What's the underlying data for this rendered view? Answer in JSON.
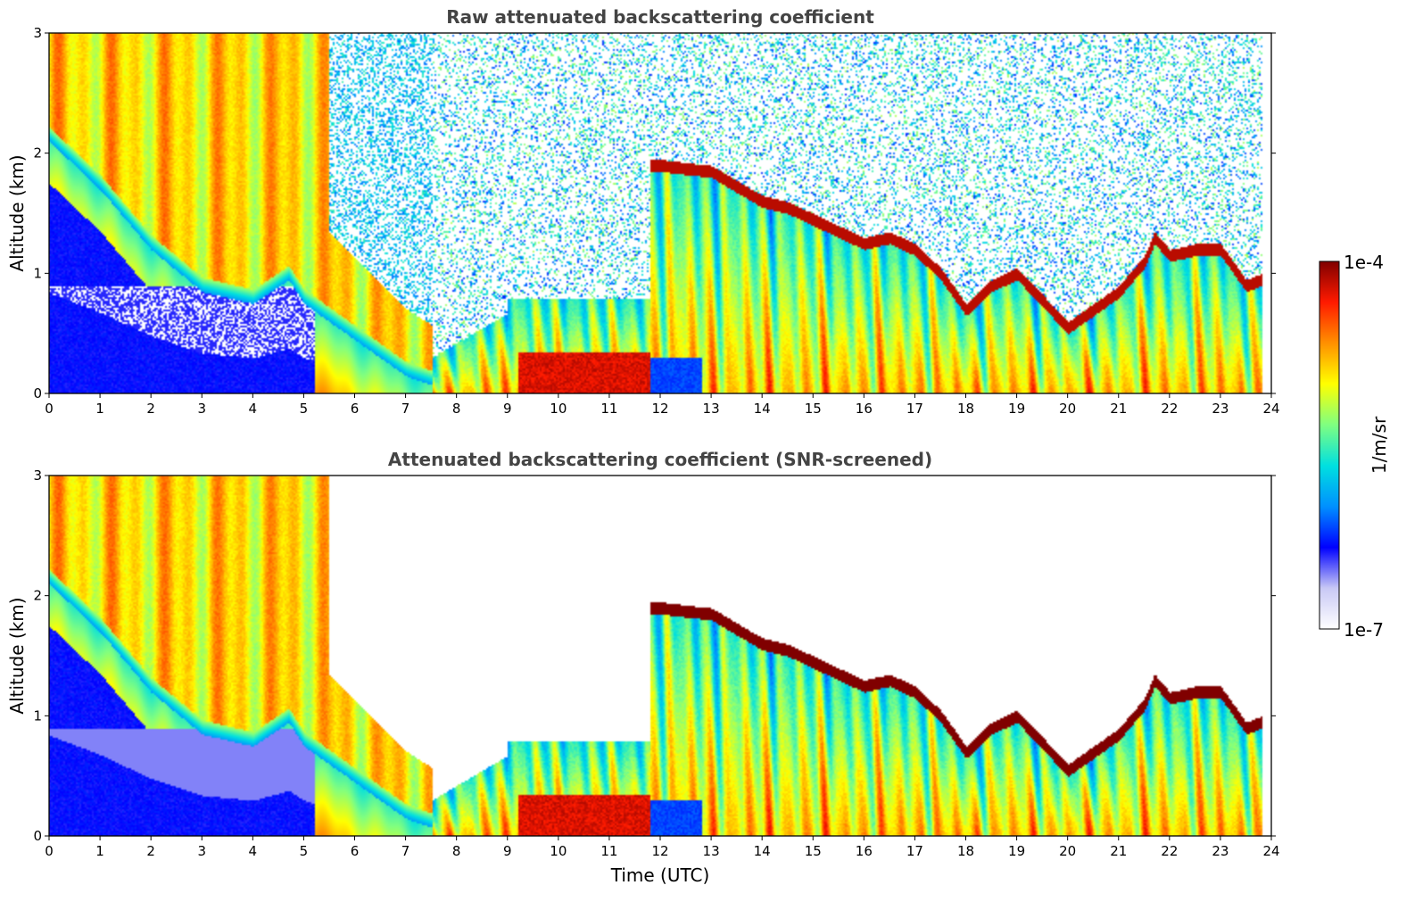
{
  "colors": {
    "colormap": [
      "#ffffff",
      "#c8c8f5",
      "#0000ff",
      "#0090ff",
      "#00e0e0",
      "#80ff80",
      "#ffff00",
      "#ff9000",
      "#ff1a00",
      "#800000"
    ],
    "frame": "#000000",
    "title_text": "#444444"
  },
  "colorbar": {
    "max_label": "1e-4",
    "min_label": "1e-7",
    "unit_label": "1/m/sr",
    "vmin": 1e-07,
    "vmax": 0.0001,
    "scale": "log"
  },
  "chart_data": [
    {
      "type": "heatmap",
      "title": "Raw attenuated backscattering coefficient",
      "xlabel": "",
      "ylabel": "Altitude (km)",
      "xlim": [
        0,
        24
      ],
      "ylim": [
        0,
        3
      ],
      "x_ticks": [
        "0",
        "1",
        "2",
        "3",
        "4",
        "5",
        "6",
        "7",
        "8",
        "9",
        "10",
        "11",
        "12",
        "13",
        "14",
        "15",
        "16",
        "17",
        "18",
        "19",
        "20",
        "21",
        "22",
        "23",
        "24"
      ],
      "y_ticks": [
        "0",
        "1",
        "2",
        "3"
      ],
      "colorscale": "jet, log",
      "cloud_top_km": {
        "time_utc": [
          12.0,
          13.0,
          14.0,
          14.5,
          15.0,
          15.5,
          16.0,
          16.5,
          17.0,
          17.5,
          18.0,
          18.5,
          19.0,
          20.0,
          21.0,
          21.5,
          21.7,
          22.0,
          22.5,
          23.0,
          23.5,
          23.8
        ],
        "altitude_km": [
          1.9,
          1.85,
          1.6,
          1.55,
          1.45,
          1.35,
          1.25,
          1.3,
          1.2,
          1.0,
          0.7,
          0.9,
          1.0,
          0.55,
          0.85,
          1.1,
          1.3,
          1.15,
          1.2,
          1.2,
          0.9,
          0.95
        ]
      },
      "mixing_layer_top_km": {
        "time_utc": [
          0.0,
          1.0,
          2.0,
          3.0,
          4.0,
          4.7,
          5.0,
          6.0,
          7.0,
          8.0,
          9.0
        ],
        "altitude_km": [
          2.1,
          1.7,
          1.2,
          0.85,
          0.75,
          0.95,
          0.75,
          0.45,
          0.15,
          0.0,
          0.0
        ]
      }
    },
    {
      "type": "heatmap",
      "title": "Attenuated backscattering coefficient (SNR-screened)",
      "xlabel": "Time (UTC)",
      "ylabel": "Altitude (km)",
      "xlim": [
        0,
        24
      ],
      "ylim": [
        0,
        3
      ],
      "x_ticks": [
        "0",
        "1",
        "2",
        "3",
        "4",
        "5",
        "6",
        "7",
        "8",
        "9",
        "10",
        "11",
        "12",
        "13",
        "14",
        "15",
        "16",
        "17",
        "18",
        "19",
        "20",
        "21",
        "22",
        "23",
        "24"
      ],
      "y_ticks": [
        "0",
        "1",
        "2",
        "3"
      ],
      "colorscale": "jet, log",
      "cloud_top_km": {
        "time_utc": [
          12.0,
          13.0,
          14.0,
          14.5,
          15.0,
          15.5,
          16.0,
          16.5,
          17.0,
          17.5,
          18.0,
          18.5,
          19.0,
          20.0,
          21.0,
          21.5,
          21.7,
          22.0,
          22.5,
          23.0,
          23.5,
          23.8
        ],
        "altitude_km": [
          1.9,
          1.85,
          1.6,
          1.55,
          1.45,
          1.35,
          1.25,
          1.3,
          1.2,
          1.0,
          0.7,
          0.9,
          1.0,
          0.55,
          0.85,
          1.1,
          1.3,
          1.15,
          1.2,
          1.2,
          0.9,
          0.95
        ]
      },
      "mixing_layer_top_km": {
        "time_utc": [
          0.0,
          1.0,
          2.0,
          3.0,
          4.0,
          4.7,
          5.0,
          6.0,
          7.0,
          8.0,
          9.0
        ],
        "altitude_km": [
          2.1,
          1.7,
          1.2,
          0.85,
          0.75,
          0.95,
          0.75,
          0.45,
          0.15,
          0.0,
          0.0
        ]
      }
    }
  ]
}
